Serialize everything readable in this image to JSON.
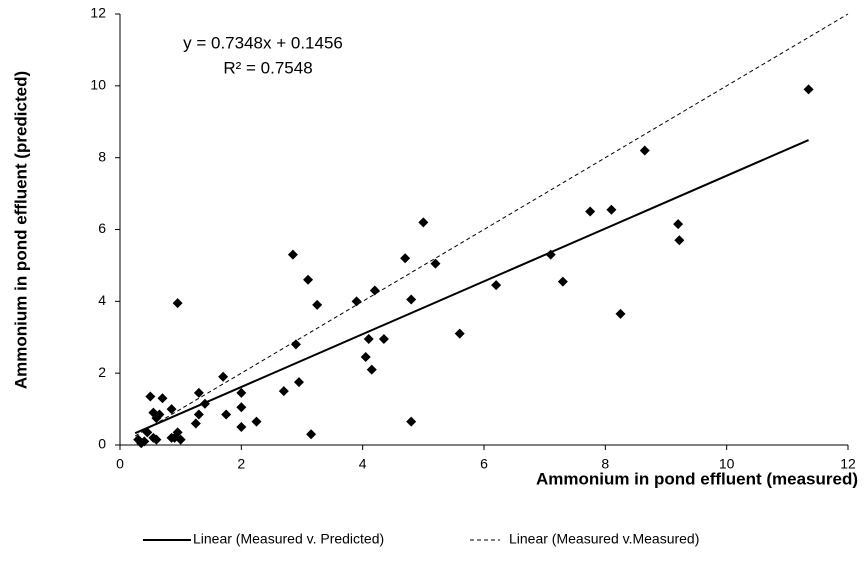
{
  "chart_data": {
    "type": "scatter",
    "xlabel": "Ammonium in pond effluent  (measured)",
    "ylabel": "Ammonium in pond effluent (predicted)",
    "annotations": [
      "y = 0.7348x + 0.1456",
      "R² = 0.7548"
    ],
    "xlim": [
      0,
      12
    ],
    "ylim": [
      0,
      12
    ],
    "xticks": [
      0,
      2,
      4,
      6,
      8,
      10,
      12
    ],
    "yticks": [
      0,
      2,
      4,
      6,
      8,
      10,
      12
    ],
    "color": "#000000",
    "x": [
      11.35,
      8.65,
      7.75,
      8.1,
      9.2,
      9.22,
      8.25,
      7.1,
      7.3,
      6.2,
      5.6,
      5.0,
      4.7,
      5.2,
      4.8,
      4.2,
      3.9,
      4.1,
      4.05,
      4.35,
      4.15,
      4.8,
      3.1,
      3.25,
      2.85,
      2.9,
      2.95,
      2.7,
      3.15,
      2.25,
      2.0,
      2.0,
      2.0,
      1.7,
      1.75,
      1.4,
      1.3,
      1.3,
      1.25,
      0.95,
      0.85,
      0.7,
      0.5,
      0.55,
      0.65,
      0.6,
      0.45,
      0.55,
      0.6,
      0.9,
      0.95,
      1.0,
      0.35,
      0.3,
      0.4,
      0.85
    ],
    "y": [
      9.9,
      8.2,
      6.5,
      6.55,
      6.15,
      5.7,
      3.65,
      5.3,
      4.55,
      4.45,
      3.1,
      6.2,
      5.2,
      5.05,
      4.05,
      4.3,
      4.0,
      2.95,
      2.45,
      2.95,
      2.1,
      0.65,
      4.6,
      3.9,
      5.3,
      2.8,
      1.75,
      1.5,
      0.3,
      0.65,
      1.45,
      1.05,
      0.5,
      1.9,
      0.85,
      1.15,
      1.45,
      0.85,
      0.6,
      3.95,
      1.0,
      1.3,
      1.35,
      0.9,
      0.85,
      0.75,
      0.35,
      0.2,
      0.15,
      0.2,
      0.35,
      0.15,
      0.05,
      0.15,
      0.1,
      0.2
    ],
    "lines": [
      {
        "name": "Linear (Measured v. Predicted)",
        "dash": false,
        "x": [
          0.25,
          11.35
        ],
        "y": [
          0.33,
          8.49
        ]
      },
      {
        "name": "Linear (Measured v.Measured)",
        "dash": true,
        "x": [
          0.25,
          12
        ],
        "y": [
          0.25,
          12
        ]
      }
    ]
  }
}
